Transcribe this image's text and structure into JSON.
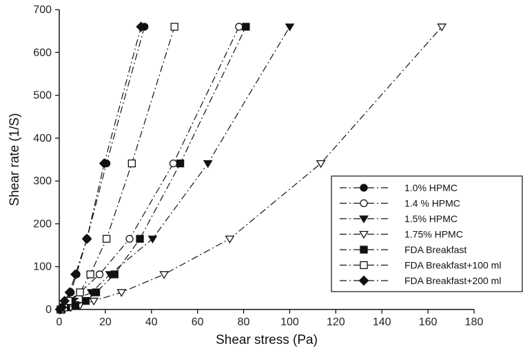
{
  "chart_data": {
    "type": "line",
    "title": "",
    "xlabel": "Shear stress (Pa)",
    "ylabel": "Shear rate (1/S)",
    "xlim": [
      0,
      180
    ],
    "ylim": [
      0,
      700
    ],
    "xticks": [
      0,
      20,
      40,
      60,
      80,
      100,
      120,
      140,
      160,
      180
    ],
    "yticks": [
      0,
      100,
      200,
      300,
      400,
      500,
      600,
      700
    ],
    "legend_position": "bottom-right",
    "grid": false,
    "line_style": "dash-dot",
    "line_color": "#111111",
    "series": [
      {
        "name": "1.0% HPMC",
        "marker": "circle-filled",
        "x": [
          0.5,
          1.5,
          2.5,
          5,
          7.5,
          12,
          20.5,
          37
        ],
        "y": [
          0,
          5,
          20,
          40,
          82,
          165,
          341,
          660
        ]
      },
      {
        "name": "1.4 % HPMC",
        "marker": "circle-open",
        "x": [
          1,
          3,
          5,
          9,
          17.5,
          30.5,
          49.5,
          78
        ],
        "y": [
          0,
          5,
          20,
          40,
          82,
          165,
          341,
          660
        ]
      },
      {
        "name": "1.5% HPMC",
        "marker": "triangle-down-filled",
        "x": [
          1,
          2.5,
          6,
          14,
          22,
          40.5,
          64.5,
          100
        ],
        "y": [
          0,
          5,
          20,
          40,
          82,
          165,
          341,
          660
        ]
      },
      {
        "name": "1.75% HPMC",
        "marker": "triangle-down-open",
        "x": [
          2,
          5,
          9,
          15,
          27,
          45.5,
          74,
          113.5,
          166
        ],
        "y": [
          0,
          5,
          10,
          20,
          40,
          82,
          165,
          341,
          660
        ]
      },
      {
        "name": "FDA Breakfast",
        "marker": "square-filled",
        "x": [
          1,
          3,
          7,
          11.5,
          16,
          24,
          35,
          52.5,
          81
        ],
        "y": [
          0,
          5,
          10,
          20,
          40,
          82,
          165,
          341,
          660
        ]
      },
      {
        "name": "FDA Breakfast+100 ml",
        "marker": "square-open",
        "x": [
          0.5,
          2,
          4,
          9,
          13.5,
          20.5,
          31.5,
          50
        ],
        "y": [
          0,
          5,
          20,
          40,
          82,
          165,
          341,
          660
        ]
      },
      {
        "name": "FDA Breakfast+200 ml",
        "marker": "diamond-filled",
        "x": [
          0.3,
          1.2,
          2.3,
          4.5,
          7,
          12,
          19.5,
          35.5
        ],
        "y": [
          0,
          5,
          20,
          40,
          82,
          165,
          341,
          660
        ]
      }
    ]
  }
}
